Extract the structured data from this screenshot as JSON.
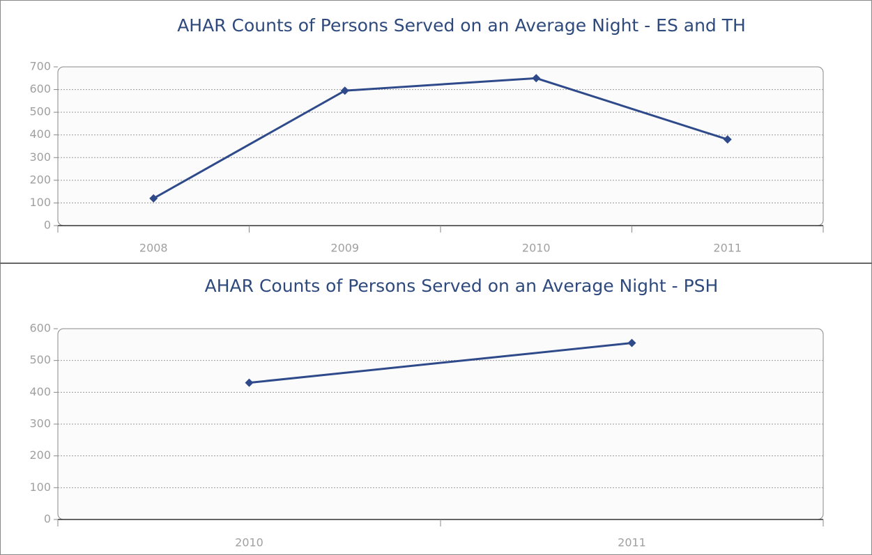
{
  "chart_data": [
    {
      "type": "line",
      "title": "AHAR Counts of Persons Served on an Average Night - ES and TH",
      "categories": [
        "2008",
        "2009",
        "2010",
        "2011"
      ],
      "series": [
        {
          "name": "ES and TH",
          "color": "#2f4a8a",
          "values": [
            120,
            595,
            650,
            380
          ]
        }
      ],
      "ylim": [
        0,
        700
      ],
      "yticks": [
        0,
        100,
        200,
        300,
        400,
        500,
        600,
        700
      ],
      "grid": true
    },
    {
      "type": "line",
      "title": "AHAR Counts of Persons Served on an Average Night - PSH",
      "categories": [
        "2010",
        "2011"
      ],
      "series": [
        {
          "name": "PSH",
          "color": "#2f4a8a",
          "values": [
            430,
            555
          ]
        }
      ],
      "ylim": [
        0,
        600
      ],
      "yticks": [
        0,
        100,
        200,
        300,
        400,
        500,
        600
      ],
      "grid": true
    }
  ]
}
